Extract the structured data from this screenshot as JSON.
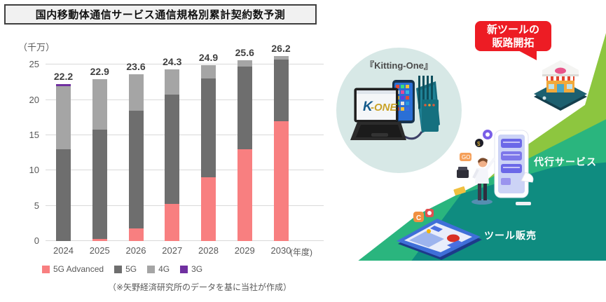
{
  "title": "国内移動体通信サービス通信規格別累計契約数予測",
  "chart_data": {
    "type": "bar",
    "stacked": true,
    "title": "国内移動体通信サービス通信規格別累計契約数予測",
    "unit_label": "（千万）",
    "categories": [
      "2024",
      "2025",
      "2026",
      "2027",
      "2028",
      "2029",
      "2030"
    ],
    "x_axis_suffix": "(年度)",
    "series": [
      {
        "name": "5G Advanced",
        "color": "#f87f80",
        "values": [
          0,
          0.3,
          1.8,
          5.3,
          9.0,
          13.0,
          17.0
        ]
      },
      {
        "name": "5G",
        "color": "#6e6e6e",
        "values": [
          13.0,
          15.5,
          16.7,
          15.5,
          14.0,
          11.7,
          8.7
        ]
      },
      {
        "name": "4G",
        "color": "#a5a5a5",
        "values": [
          8.9,
          7.1,
          5.1,
          3.5,
          1.9,
          0.9,
          0.5
        ]
      },
      {
        "name": "3G",
        "color": "#7030a0",
        "values": [
          0.3,
          0,
          0,
          0,
          0,
          0,
          0
        ]
      }
    ],
    "totals": [
      "22.2",
      "22.9",
      "23.6",
      "24.3",
      "24.9",
      "25.6",
      "26.2"
    ],
    "y_ticks": [
      0,
      5,
      10,
      15,
      20,
      25
    ],
    "ylim": [
      0,
      26
    ],
    "grid": true,
    "legend_position": "bottom"
  },
  "source_note": "（※矢野経済研究所のデータを基に当社が作成）",
  "illustration": {
    "product_caption": "『Kitting-One』",
    "logo_k": "K",
    "logo_one": "ONE",
    "callout_line1": "新ツールの",
    "callout_line2": "販路開拓",
    "label_agency": "代行サービス",
    "label_sales": "ツール販売",
    "colors": {
      "callout_red": "#ed1c24",
      "wedge_light_green": "#8dc63f",
      "wedge_emerald": "#2ab57e",
      "wedge_teal": "#0f8c80",
      "circle_bg": "#d7e8e6"
    }
  }
}
